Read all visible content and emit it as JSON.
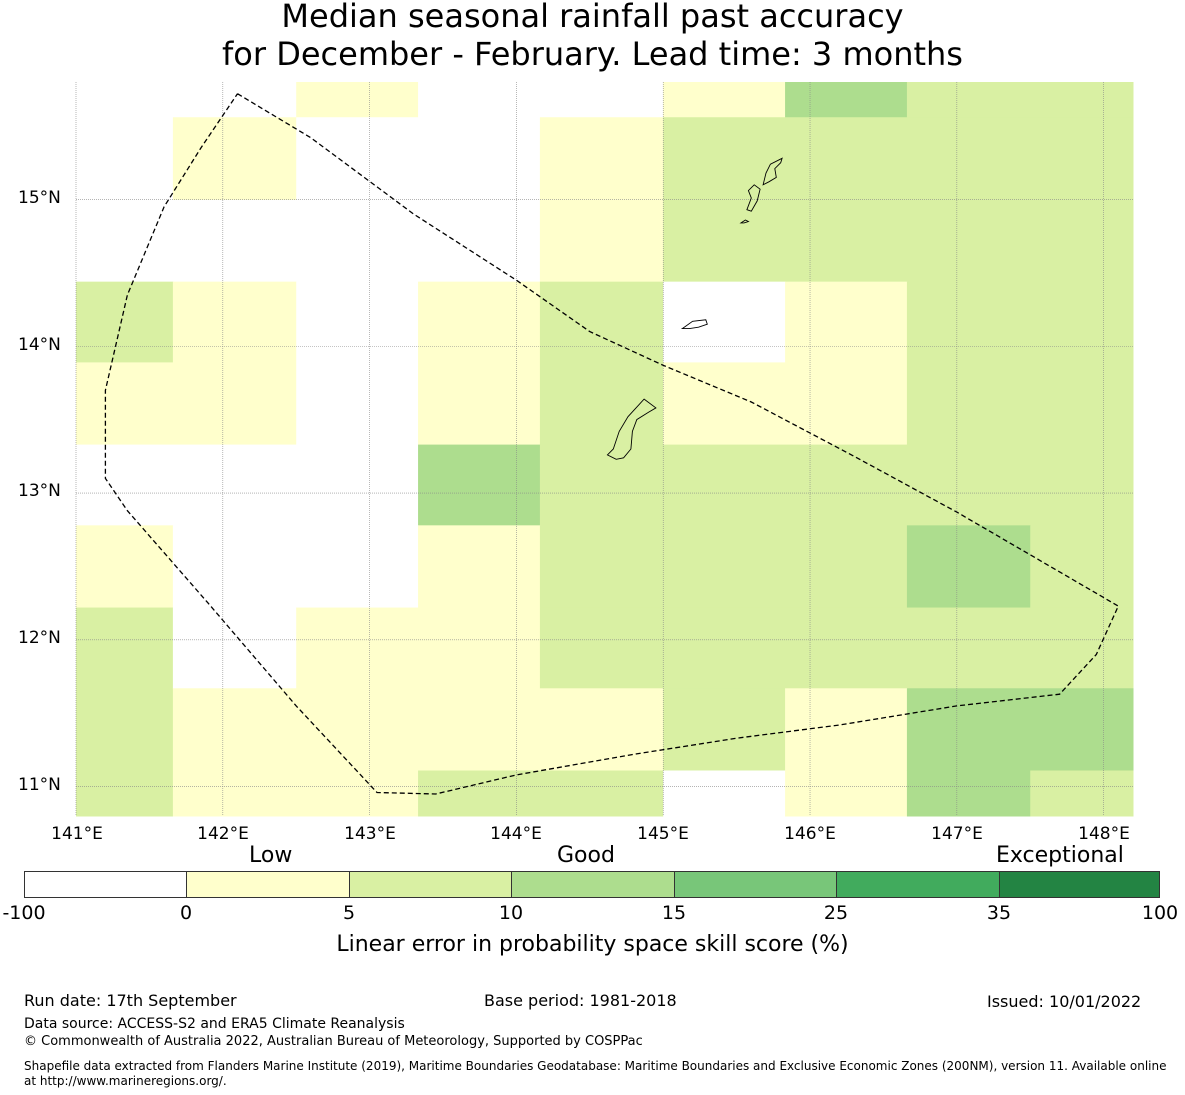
{
  "title": {
    "line1": "Median seasonal rainfall past accuracy",
    "line2": "for December - February. Lead time: 3 months"
  },
  "map": {
    "lat_labels": [
      "15°N",
      "14°N",
      "13°N",
      "12°N",
      "11°N"
    ],
    "lon_labels": [
      "141°E",
      "142°E",
      "143°E",
      "144°E",
      "145°E",
      "146°E",
      "147°E",
      "148°E"
    ],
    "lon_range": [
      141.0,
      148.2
    ],
    "lat_range": [
      10.8,
      15.8
    ],
    "cell_colors": {
      "white": "#ffffff",
      "low": "#ffffcc",
      "mid": "#d9f0a3",
      "good": "#addd8e"
    },
    "grid_cells": [
      {
        "lon": [
          141.0,
          141.66
        ],
        "lat": [
          14.44,
          15.8
        ],
        "cat": "white"
      },
      {
        "lon": [
          141.66,
          142.5
        ],
        "lat": [
          15.0,
          15.56
        ],
        "cat": "low"
      },
      {
        "lon": [
          142.5,
          143.33
        ],
        "lat": [
          15.56,
          15.8
        ],
        "cat": "low"
      },
      {
        "lon": [
          142.5,
          143.33
        ],
        "lat": [
          14.44,
          15.56
        ],
        "cat": "white"
      },
      {
        "lon": [
          143.33,
          144.16
        ],
        "lat": [
          14.44,
          15.8
        ],
        "cat": "white"
      },
      {
        "lon": [
          144.16,
          145.0
        ],
        "lat": [
          15.56,
          15.8
        ],
        "cat": "white"
      },
      {
        "lon": [
          144.16,
          145.0
        ],
        "lat": [
          14.44,
          15.56
        ],
        "cat": "low"
      },
      {
        "lon": [
          145.0,
          145.83
        ],
        "lat": [
          15.56,
          15.8
        ],
        "cat": "low"
      },
      {
        "lon": [
          145.83,
          146.66
        ],
        "lat": [
          15.56,
          15.8
        ],
        "cat": "good"
      },
      {
        "lon": [
          146.66,
          148.2
        ],
        "lat": [
          15.56,
          15.8
        ],
        "cat": "mid"
      },
      {
        "lon": [
          145.0,
          148.2
        ],
        "lat": [
          14.44,
          15.56
        ],
        "cat": "mid"
      },
      {
        "lon": [
          141.0,
          141.66
        ],
        "lat": [
          13.89,
          14.44
        ],
        "cat": "mid"
      },
      {
        "lon": [
          141.0,
          141.66
        ],
        "lat": [
          13.33,
          13.89
        ],
        "cat": "low"
      },
      {
        "lon": [
          141.66,
          142.5
        ],
        "lat": [
          13.33,
          14.44
        ],
        "cat": "low"
      },
      {
        "lon": [
          142.5,
          143.33
        ],
        "lat": [
          13.33,
          14.44
        ],
        "cat": "white"
      },
      {
        "lon": [
          143.33,
          144.16
        ],
        "lat": [
          13.33,
          14.44
        ],
        "cat": "low"
      },
      {
        "lon": [
          144.16,
          145.0
        ],
        "lat": [
          13.33,
          14.44
        ],
        "cat": "mid"
      },
      {
        "lon": [
          145.0,
          145.83
        ],
        "lat": [
          13.89,
          14.44
        ],
        "cat": "white"
      },
      {
        "lon": [
          145.0,
          145.83
        ],
        "lat": [
          13.33,
          13.89
        ],
        "cat": "low"
      },
      {
        "lon": [
          145.83,
          146.66
        ],
        "lat": [
          13.33,
          14.44
        ],
        "cat": "low"
      },
      {
        "lon": [
          146.66,
          148.2
        ],
        "lat": [
          13.33,
          14.44
        ],
        "cat": "mid"
      },
      {
        "lon": [
          141.0,
          143.33
        ],
        "lat": [
          12.78,
          13.33
        ],
        "cat": "white"
      },
      {
        "lon": [
          143.33,
          144.16
        ],
        "lat": [
          12.78,
          13.33
        ],
        "cat": "good"
      },
      {
        "lon": [
          144.16,
          148.2
        ],
        "lat": [
          12.78,
          13.33
        ],
        "cat": "mid"
      },
      {
        "lon": [
          141.0,
          141.66
        ],
        "lat": [
          12.22,
          12.78
        ],
        "cat": "low"
      },
      {
        "lon": [
          141.66,
          143.33
        ],
        "lat": [
          12.22,
          12.78
        ],
        "cat": "white"
      },
      {
        "lon": [
          143.33,
          144.16
        ],
        "lat": [
          12.22,
          12.78
        ],
        "cat": "low"
      },
      {
        "lon": [
          144.16,
          146.66
        ],
        "lat": [
          12.22,
          12.78
        ],
        "cat": "mid"
      },
      {
        "lon": [
          146.66,
          147.5
        ],
        "lat": [
          12.22,
          12.78
        ],
        "cat": "good"
      },
      {
        "lon": [
          147.5,
          148.2
        ],
        "lat": [
          12.22,
          12.78
        ],
        "cat": "mid"
      },
      {
        "lon": [
          141.0,
          141.66
        ],
        "lat": [
          10.8,
          12.22
        ],
        "cat": "mid"
      },
      {
        "lon": [
          141.66,
          142.5
        ],
        "lat": [
          11.67,
          12.22
        ],
        "cat": "white"
      },
      {
        "lon": [
          142.5,
          144.16
        ],
        "lat": [
          11.67,
          12.22
        ],
        "cat": "low"
      },
      {
        "lon": [
          144.16,
          148.2
        ],
        "lat": [
          11.67,
          12.22
        ],
        "cat": "mid"
      },
      {
        "lon": [
          141.66,
          143.33
        ],
        "lat": [
          10.8,
          11.67
        ],
        "cat": "low"
      },
      {
        "lon": [
          143.33,
          145.0
        ],
        "lat": [
          11.11,
          11.67
        ],
        "cat": "low"
      },
      {
        "lon": [
          143.33,
          145.0
        ],
        "lat": [
          10.8,
          11.11
        ],
        "cat": "mid"
      },
      {
        "lon": [
          145.0,
          145.83
        ],
        "lat": [
          11.11,
          11.67
        ],
        "cat": "mid"
      },
      {
        "lon": [
          145.0,
          145.83
        ],
        "lat": [
          10.8,
          11.11
        ],
        "cat": "white"
      },
      {
        "lon": [
          145.83,
          146.66
        ],
        "lat": [
          10.8,
          11.67
        ],
        "cat": "low"
      },
      {
        "lon": [
          146.66,
          148.2
        ],
        "lat": [
          11.11,
          11.67
        ],
        "cat": "good"
      },
      {
        "lon": [
          146.66,
          147.5
        ],
        "lat": [
          10.8,
          11.11
        ],
        "cat": "good"
      },
      {
        "lon": [
          147.5,
          148.2
        ],
        "lat": [
          10.8,
          11.11
        ],
        "cat": "mid"
      }
    ],
    "eez_boundary": [
      [
        142.1,
        15.72
      ],
      [
        142.6,
        15.42
      ],
      [
        143.3,
        14.9
      ],
      [
        144.0,
        14.45
      ],
      [
        144.5,
        14.1
      ],
      [
        145.0,
        13.87
      ],
      [
        145.6,
        13.62
      ],
      [
        146.3,
        13.25
      ],
      [
        147.0,
        12.87
      ],
      [
        147.55,
        12.55
      ],
      [
        148.1,
        12.23
      ],
      [
        147.95,
        11.9
      ],
      [
        147.7,
        11.63
      ],
      [
        147.0,
        11.55
      ],
      [
        146.2,
        11.42
      ],
      [
        145.5,
        11.33
      ],
      [
        144.8,
        11.22
      ],
      [
        144.0,
        11.08
      ],
      [
        143.45,
        10.95
      ],
      [
        143.05,
        10.96
      ],
      [
        142.5,
        11.55
      ],
      [
        141.9,
        12.25
      ],
      [
        141.35,
        12.88
      ],
      [
        141.2,
        13.1
      ],
      [
        141.2,
        13.7
      ],
      [
        141.35,
        14.35
      ],
      [
        141.6,
        14.95
      ],
      [
        141.85,
        15.35
      ],
      [
        142.1,
        15.72
      ]
    ],
    "islands": {
      "guam": [
        [
          144.62,
          13.26
        ],
        [
          144.66,
          13.3
        ],
        [
          144.7,
          13.42
        ],
        [
          144.76,
          13.52
        ],
        [
          144.87,
          13.64
        ],
        [
          144.95,
          13.58
        ],
        [
          144.9,
          13.55
        ],
        [
          144.82,
          13.5
        ],
        [
          144.79,
          13.42
        ],
        [
          144.78,
          13.3
        ],
        [
          144.73,
          13.24
        ],
        [
          144.68,
          13.23
        ],
        [
          144.62,
          13.26
        ]
      ],
      "rota": [
        [
          145.13,
          14.12
        ],
        [
          145.2,
          14.17
        ],
        [
          145.29,
          14.18
        ],
        [
          145.3,
          14.15
        ],
        [
          145.24,
          14.13
        ],
        [
          145.18,
          14.12
        ],
        [
          145.13,
          14.12
        ]
      ],
      "tinian": [
        [
          145.57,
          14.93
        ],
        [
          145.6,
          15.01
        ],
        [
          145.58,
          15.06
        ],
        [
          145.62,
          15.1
        ],
        [
          145.66,
          15.07
        ],
        [
          145.64,
          14.99
        ],
        [
          145.6,
          14.92
        ],
        [
          145.57,
          14.93
        ]
      ],
      "saipan": [
        [
          145.68,
          15.1
        ],
        [
          145.7,
          15.18
        ],
        [
          145.73,
          15.24
        ],
        [
          145.81,
          15.28
        ],
        [
          145.8,
          15.25
        ],
        [
          145.76,
          15.21
        ],
        [
          145.77,
          15.15
        ],
        [
          145.72,
          15.12
        ],
        [
          145.68,
          15.1
        ]
      ],
      "aguijan": [
        [
          145.53,
          14.84
        ],
        [
          145.56,
          14.86
        ],
        [
          145.58,
          14.85
        ],
        [
          145.55,
          14.84
        ],
        [
          145.53,
          14.84
        ]
      ]
    },
    "line_color": "#000000",
    "grid_color": "#888888"
  },
  "colorbar": {
    "category_low": "Low",
    "category_good": "Good",
    "category_exceptional": "Exceptional",
    "ticks": [
      "-100",
      "0",
      "5",
      "10",
      "15",
      "25",
      "35",
      "100"
    ],
    "colors": [
      "#ffffff",
      "#ffffcc",
      "#d9f0a3",
      "#addd8e",
      "#78c679",
      "#41ab5d",
      "#238443"
    ],
    "label": "Linear error in probability space skill score (%)"
  },
  "footer": {
    "run_date": "Run date: 17th September",
    "base_period": "Base period: 1981-2018",
    "issued": "Issued: 10/01/2022",
    "data_source": "Data source: ACCESS-S2 and ERA5 Climate Reanalysis",
    "copyright": "© Commonwealth of Australia 2022, Australian Bureau of Meteorology, Supported by COSPPac",
    "shapefile_line1": "Shapefile data extracted from Flanders Marine Institute (2019), Maritime Boundaries Geodatabase: Maritime Boundaries and Exclusive Economic Zones (200NM), version 11. Available online",
    "shapefile_line2": "at http://www.marineregions.org/."
  }
}
